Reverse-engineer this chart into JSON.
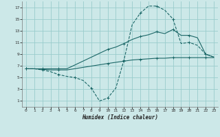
{
  "xlabel": "Humidex (Indice chaleur)",
  "background_color": "#cce8e8",
  "grid_color": "#99cccc",
  "line_color": "#1a6666",
  "xlim": [
    -0.5,
    23.5
  ],
  "ylim": [
    0,
    18
  ],
  "xticks": [
    0,
    1,
    2,
    3,
    4,
    5,
    6,
    7,
    8,
    9,
    10,
    11,
    12,
    13,
    14,
    15,
    16,
    17,
    18,
    19,
    20,
    21,
    22,
    23
  ],
  "yticks": [
    1,
    3,
    5,
    7,
    9,
    11,
    13,
    15,
    17
  ],
  "curve1_x": [
    0,
    1,
    2,
    3,
    4,
    5,
    6,
    7,
    8,
    9,
    10,
    11,
    12,
    13,
    14,
    15,
    16,
    17,
    18,
    19,
    20,
    21,
    22,
    23
  ],
  "curve1_y": [
    6.5,
    6.5,
    6.3,
    6.0,
    5.5,
    5.2,
    5.0,
    4.5,
    3.2,
    1.0,
    1.5,
    3.2,
    8.0,
    14.0,
    16.0,
    17.2,
    17.2,
    16.5,
    15.0,
    10.8,
    11.0,
    10.5,
    9.0,
    8.5
  ],
  "curve2_x": [
    0,
    1,
    2,
    3,
    4,
    5,
    10,
    11,
    12,
    13,
    14,
    15,
    16,
    17,
    18,
    19,
    20,
    21,
    22,
    23
  ],
  "curve2_y": [
    6.5,
    6.5,
    6.5,
    6.5,
    6.5,
    6.5,
    9.8,
    10.2,
    10.8,
    11.5,
    12.0,
    12.3,
    12.8,
    12.5,
    13.2,
    12.2,
    12.2,
    11.8,
    9.0,
    8.5
  ],
  "curve3_x": [
    0,
    1,
    2,
    3,
    4,
    5,
    10,
    11,
    12,
    13,
    14,
    15,
    16,
    17,
    18,
    19,
    20,
    21,
    22,
    23
  ],
  "curve3_y": [
    6.5,
    6.5,
    6.4,
    6.3,
    6.3,
    6.3,
    7.4,
    7.6,
    7.8,
    8.0,
    8.1,
    8.2,
    8.3,
    8.3,
    8.4,
    8.4,
    8.4,
    8.4,
    8.4,
    8.4
  ]
}
